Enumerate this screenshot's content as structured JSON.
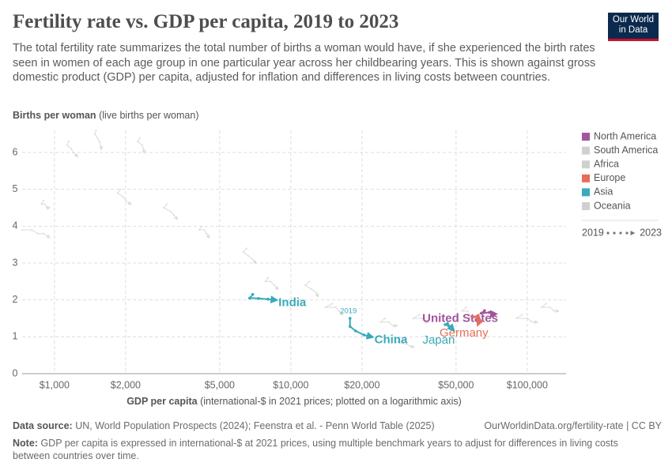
{
  "chart_data": {
    "type": "connected-scatter",
    "title": "Fertility rate vs. GDP per capita, 2019 to 2023",
    "subtitle": "The total fertility rate summarizes the total number of births a woman would have, if she experienced the birth rates seen in women of each age group in one particular year across her childbearing years. This is shown against gross domestic product (GDP) per capita, adjusted for inflation and differences in living costs between countries.",
    "logo": "Our World in Data",
    "y_label": {
      "bold": "Births per woman",
      "rest": "(live births per woman)"
    },
    "x_label": {
      "bold": "GDP per capita",
      "rest": "(international-$ in 2021 prices; plotted on a logarithmic axis)"
    },
    "x_log": true,
    "grid": true,
    "xlim": [
      730,
      146000
    ],
    "ylim": [
      0,
      6.6
    ],
    "xticks": [
      {
        "value": 1000,
        "label": "$1,000"
      },
      {
        "value": 2000,
        "label": "$2,000"
      },
      {
        "value": 5000,
        "label": "$5,000"
      },
      {
        "value": 10000,
        "label": "$10,000"
      },
      {
        "value": 20000,
        "label": "$20,000"
      },
      {
        "value": 50000,
        "label": "$50,000"
      },
      {
        "value": 100000,
        "label": "$100,000"
      }
    ],
    "yticks": [
      0,
      1,
      2,
      3,
      4,
      5,
      6
    ],
    "legend": [
      {
        "name": "North America",
        "color": "#a2559c"
      },
      {
        "name": "South America",
        "color": "#d0d0d0"
      },
      {
        "name": "Africa",
        "color": "#d0d0d0"
      },
      {
        "name": "Europe",
        "color": "#e56e5a"
      },
      {
        "name": "Asia",
        "color": "#38aaba"
      },
      {
        "name": "Oceania",
        "color": "#d0d0d0"
      }
    ],
    "time_legend": [
      "2019",
      "2023"
    ],
    "start_label": "2019",
    "series": [
      {
        "name": "India",
        "color": "#38aaba",
        "x": [
          6900,
          6700,
          7300,
          8000,
          8600
        ],
        "y": [
          2.15,
          2.05,
          2.04,
          2.02,
          2.0
        ]
      },
      {
        "name": "China",
        "color": "#38aaba",
        "x": [
          17800,
          17800,
          18800,
          20400,
          21900
        ],
        "y": [
          1.5,
          1.28,
          1.16,
          1.05,
          1.0
        ]
      },
      {
        "name": "United States",
        "color": "#a2559c",
        "x": [
          66000,
          64000,
          69000,
          71000,
          73000
        ],
        "y": [
          1.71,
          1.64,
          1.66,
          1.62,
          1.62
        ]
      },
      {
        "name": "Germany",
        "color": "#e56e5a",
        "x": [
          62000,
          59000,
          62000,
          63000,
          62000
        ],
        "y": [
          1.54,
          1.53,
          1.58,
          1.46,
          1.35
        ]
      },
      {
        "name": "Japan",
        "color": "#38aaba",
        "x": [
          46000,
          45000,
          46500,
          47500,
          48500
        ],
        "y": [
          1.36,
          1.33,
          1.3,
          1.26,
          1.2
        ]
      }
    ],
    "background_series": [
      {
        "x": [
          1150,
          1130,
          1180,
          1200,
          1250
        ],
        "y": [
          6.3,
          6.2,
          6.1,
          6.0,
          5.9
        ]
      },
      {
        "x": [
          1500,
          1480,
          1520,
          1550,
          1580
        ],
        "y": [
          6.6,
          6.5,
          6.4,
          6.3,
          6.1
        ]
      },
      {
        "x": [
          2300,
          2250,
          2350,
          2380,
          2400
        ],
        "y": [
          6.4,
          6.3,
          6.2,
          6.1,
          6.0
        ]
      },
      {
        "x": [
          900,
          880,
          910,
          930,
          950
        ],
        "y": [
          4.7,
          4.6,
          4.6,
          4.5,
          4.5
        ]
      },
      {
        "x": [
          3000,
          2900,
          3100,
          3200,
          3300
        ],
        "y": [
          4.6,
          4.5,
          4.4,
          4.3,
          4.2
        ]
      },
      {
        "x": [
          4200,
          4100,
          4300,
          4400,
          4500
        ],
        "y": [
          4.0,
          3.9,
          3.9,
          3.8,
          3.7
        ]
      },
      {
        "x": [
          730,
          800,
          850,
          900,
          950
        ],
        "y": [
          3.9,
          3.9,
          3.8,
          3.8,
          3.7
        ]
      },
      {
        "x": [
          1900,
          1850,
          1950,
          2000,
          2100
        ],
        "y": [
          5.0,
          4.9,
          4.8,
          4.7,
          4.6
        ]
      },
      {
        "x": [
          6500,
          6300,
          6600,
          6900,
          7100
        ],
        "y": [
          3.4,
          3.3,
          3.2,
          3.1,
          3.0
        ]
      },
      {
        "x": [
          12000,
          11500,
          12200,
          12800,
          13000
        ],
        "y": [
          2.5,
          2.4,
          2.3,
          2.2,
          2.1
        ]
      },
      {
        "x": [
          15000,
          14000,
          15500,
          16000,
          16500
        ],
        "y": [
          1.9,
          1.8,
          1.8,
          1.7,
          1.6
        ]
      },
      {
        "x": [
          25000,
          24000,
          26000,
          27000,
          28000
        ],
        "y": [
          1.5,
          1.4,
          1.4,
          1.3,
          1.3
        ]
      },
      {
        "x": [
          35000,
          33000,
          36000,
          37000,
          38000
        ],
        "y": [
          1.6,
          1.5,
          1.5,
          1.4,
          1.4
        ]
      },
      {
        "x": [
          55000,
          53000,
          56000,
          57000,
          58000
        ],
        "y": [
          1.8,
          1.7,
          1.7,
          1.6,
          1.5
        ]
      },
      {
        "x": [
          95000,
          90000,
          100000,
          105000,
          110000
        ],
        "y": [
          1.6,
          1.5,
          1.5,
          1.4,
          1.4
        ]
      },
      {
        "x": [
          120000,
          115000,
          125000,
          130000,
          135000
        ],
        "y": [
          1.9,
          1.8,
          1.8,
          1.7,
          1.7
        ]
      },
      {
        "x": [
          8000,
          7800,
          8200,
          8500,
          8800
        ],
        "y": [
          2.6,
          2.5,
          2.5,
          2.4,
          2.3
        ]
      },
      {
        "x": [
          30000,
          28000,
          31000,
          32000,
          33000
        ],
        "y": [
          0.9,
          0.85,
          0.8,
          0.75,
          0.72
        ]
      }
    ],
    "source": {
      "bold": "Data source:",
      "rest": "UN, World Population Prospects (2024); Feenstra et al. - Penn World Table (2025)"
    },
    "url": "OurWorldinData.org/fertility-rate | CC BY",
    "note": {
      "bold": "Note:",
      "rest": "GDP per capita is expressed in international-$ at 2021 prices, using multiple benchmark years to adjust for differences in living costs between countries over time."
    }
  }
}
